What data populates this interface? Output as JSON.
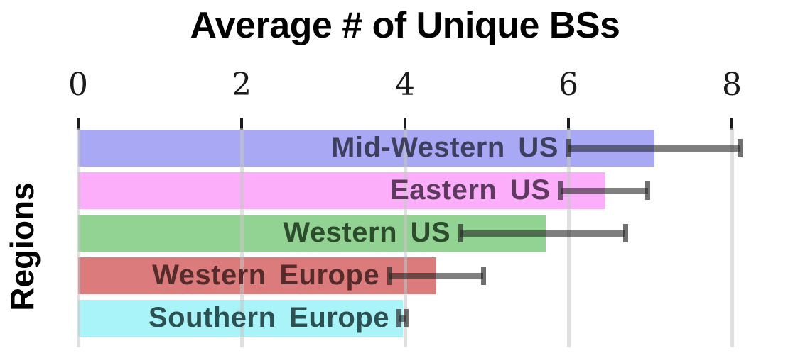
{
  "chart_data": {
    "type": "bar",
    "orientation": "horizontal",
    "title": "Average # of Unique BSs",
    "ylabel": "Regions",
    "xlabel": "",
    "xlim": [
      0,
      8.7
    ],
    "x_ticks": [
      "0",
      "2",
      "4",
      "6",
      "8"
    ],
    "x_tick_values": [
      0,
      2,
      4,
      6,
      8
    ],
    "grid": true,
    "grid_over_bars": true,
    "legend": "none",
    "bars": [
      {
        "category": "Mid-Western US",
        "value": 7.05,
        "error_low": 6.0,
        "error_high": 8.1,
        "bar_color": "#a8a8f5",
        "label_color": "#3f3f60"
      },
      {
        "category": "Eastern US",
        "value": 6.45,
        "error_low": 5.9,
        "error_high": 6.97,
        "bar_color": "#fcaefb",
        "label_color": "#5e3b5e"
      },
      {
        "category": "Western US",
        "value": 5.72,
        "error_low": 4.68,
        "error_high": 6.7,
        "bar_color": "#92d292",
        "label_color": "#2d4b2d"
      },
      {
        "category": "Western Europe",
        "value": 4.38,
        "error_low": 3.81,
        "error_high": 4.96,
        "bar_color": "#db7b7b",
        "label_color": "#552b2b"
      },
      {
        "category": "Southern Europe",
        "value": 3.97,
        "error_low": 3.93,
        "error_high": 4.01,
        "bar_color": "#a9f4f9",
        "label_color": "#2d5053"
      }
    ],
    "style_colors": {
      "title": "#000000",
      "tick": "#1b1b1b",
      "tick_label": "#1b1b1b",
      "gridline": "rgba(198,198,198,0.55)",
      "error_line": "rgba(35,35,35,0.58)",
      "error_cap": "rgba(35,35,35,0.65)"
    }
  }
}
